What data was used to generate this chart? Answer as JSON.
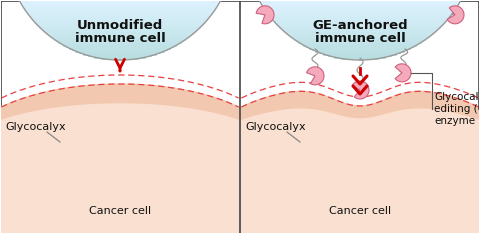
{
  "bg_color": "#ffffff",
  "border_color": "#444444",
  "left_title_line1": "Unmodified",
  "left_title_line2": "immune cell",
  "right_title_line1": "GE-anchored",
  "right_title_line2": "immune cell",
  "immune_cell_fill_top": "#b8ddf0",
  "immune_cell_fill_bottom": "#ddf0fa",
  "immune_cell_outline": "#999999",
  "cancer_fill_outer": "#f2c9b0",
  "cancer_fill_inner": "#fae0d0",
  "glycocalyx_color": "#e84040",
  "arrow_color": "#cc0000",
  "text_color": "#111111",
  "label_glycocalyx": "Glycocalyx",
  "label_cancer": "Cancer cell",
  "label_ge_enzyme": "Glycocalyx-\nediting (GE)\nenzyme",
  "enzyme_fill": "#f4aabb",
  "enzyme_edge": "#d06080",
  "linker_color": "#999999",
  "fontsize_title": 9.5,
  "fontsize_label": 8.0
}
